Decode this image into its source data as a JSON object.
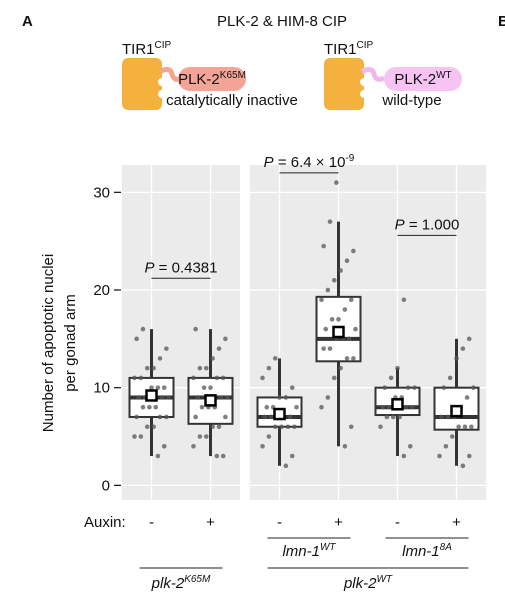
{
  "panel_labels": [
    "A",
    "B"
  ],
  "diagram": {
    "left": {
      "enzyme": "TIR1",
      "enzyme_sup": "CIP",
      "target": "PLK-2",
      "target_sup": "K65M",
      "caption": "catalytically inactive"
    },
    "right": {
      "enzyme": "TIR1",
      "enzyme_sup": "CIP",
      "target": "PLK-2",
      "target_sup": "WT",
      "caption": "wild-type"
    }
  },
  "chart_data": {
    "type": "box",
    "title": "PLK-2 & HIM-8 CIP",
    "y_label": [
      "Number of apoptotic nuclei",
      "per gonad arm"
    ],
    "x_label": "Auxin:",
    "ylim": [
      -1.5,
      32.8
    ],
    "yticks": [
      0,
      10,
      20,
      30
    ],
    "grid": true,
    "box_color": "#333333",
    "point_color": "#555555",
    "facets": [
      {
        "name": "plk-2",
        "sup": "K65M",
        "annotation": {
          "p": "P",
          "text": " = 0.4381",
          "y": 21.2
        },
        "groups": [
          {
            "auxin": "-",
            "whisker_low": 3,
            "q1": 7,
            "median": 9,
            "q3": 11,
            "whisker_high": 16,
            "mean": 9.2,
            "points": [
              3,
              4,
              5,
              5,
              6,
              6,
              7,
              7,
              7,
              8,
              8,
              8,
              9,
              9,
              9,
              9,
              10,
              10,
              10,
              11,
              11,
              12,
              12,
              13,
              14,
              15,
              16
            ]
          },
          {
            "auxin": "+",
            "whisker_low": 3,
            "q1": 6.3,
            "median": 9,
            "q3": 11,
            "whisker_high": 16,
            "mean": 8.7,
            "points": [
              3,
              3,
              4,
              5,
              5,
              6,
              6,
              7,
              7,
              8,
              8,
              8,
              9,
              9,
              9,
              10,
              10,
              11,
              11,
              11,
              12,
              12,
              13,
              14,
              15,
              16
            ]
          }
        ]
      },
      {
        "name": "plk-2",
        "sup": "WT",
        "subgroups": [
          {
            "name": "lmn-1",
            "sup": "WT",
            "annotation": {
              "p": "P",
              "text": " = 6.4 × 10",
              "exp": "-9",
              "y": 32
            },
            "groups": [
              {
                "auxin": "-",
                "whisker_low": 2,
                "q1": 6,
                "median": 7,
                "q3": 9,
                "whisker_high": 13,
                "mean": 7.3,
                "points": [
                  2,
                  3,
                  4,
                  5,
                  6,
                  6,
                  6,
                  6,
                  7,
                  7,
                  7,
                  7,
                  7,
                  8,
                  8,
                  8,
                  9,
                  9,
                  10,
                  11,
                  12,
                  13
                ]
              },
              {
                "auxin": "+",
                "whisker_low": 4,
                "q1": 12.7,
                "median": 15,
                "q3": 19.3,
                "whisker_high": 27,
                "mean": 15.7,
                "points": [
                  4,
                  6,
                  8,
                  9,
                  11,
                  12,
                  13,
                  13,
                  14,
                  14,
                  15,
                  15,
                  15,
                  16,
                  16,
                  17,
                  17,
                  18,
                  19,
                  19,
                  20,
                  21,
                  22,
                  23,
                  24,
                  24.5,
                  27,
                  31
                ]
              }
            ]
          },
          {
            "name": "lmn-1",
            "sup": "8A",
            "annotation": {
              "p": "P",
              "text": " = 1.000",
              "y": 25.6
            },
            "groups": [
              {
                "auxin": "-",
                "whisker_low": 3,
                "q1": 7.2,
                "median": 8,
                "q3": 10,
                "whisker_high": 12,
                "mean": 8.3,
                "points": [
                  3,
                  4,
                  6,
                  7,
                  7,
                  7,
                  8,
                  8,
                  8,
                  8,
                  9,
                  9,
                  10,
                  10,
                  10,
                  11,
                  12,
                  19
                ]
              },
              {
                "auxin": "+",
                "whisker_low": 2,
                "q1": 5.7,
                "median": 7,
                "q3": 10,
                "whisker_high": 15,
                "mean": 7.6,
                "points": [
                  2,
                  3,
                  3,
                  4,
                  5,
                  6,
                  6,
                  6,
                  7,
                  7,
                  7,
                  8,
                  9,
                  10,
                  10,
                  11,
                  13,
                  14,
                  15
                ]
              }
            ]
          }
        ]
      }
    ]
  }
}
